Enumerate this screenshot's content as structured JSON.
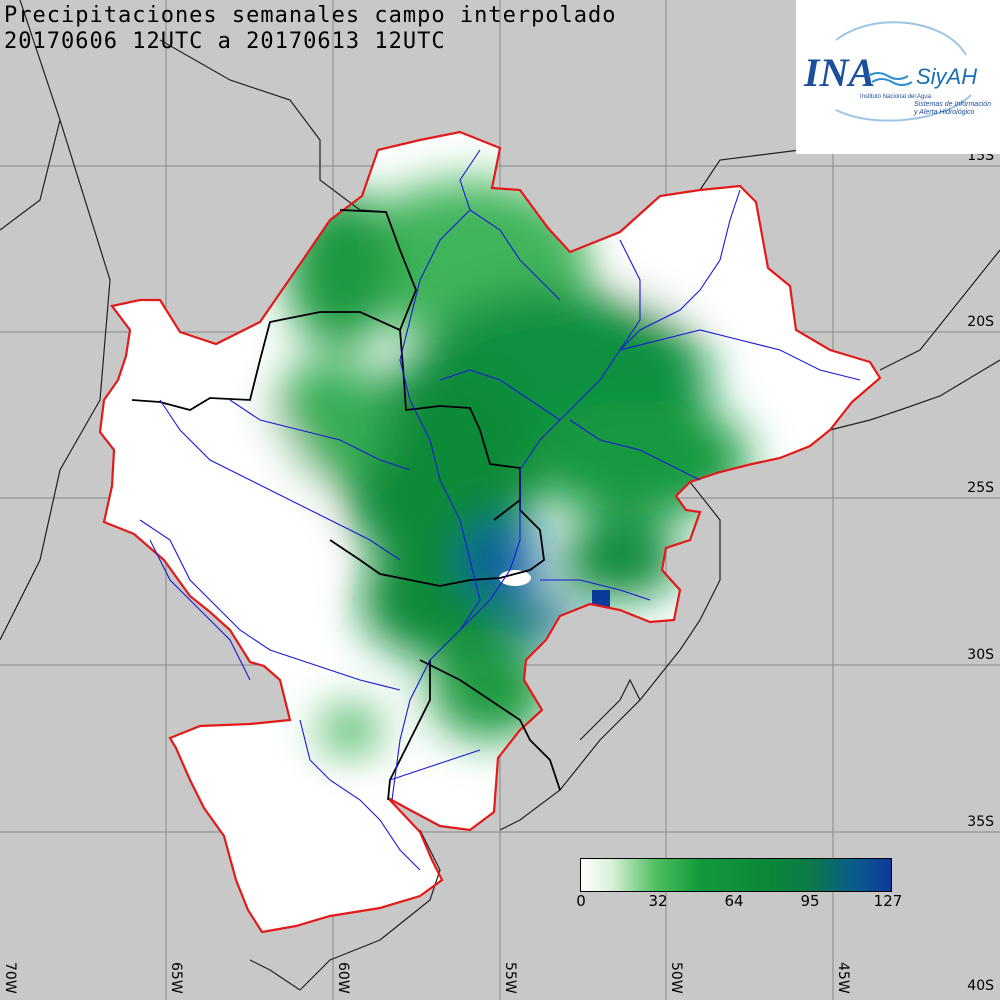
{
  "title": {
    "line1": "Precipitaciones semanales campo interpolado",
    "line2": "20170606 12UTC a 20170613 12UTC"
  },
  "latitude_labels": [
    "15S",
    "20S",
    "25S",
    "30S",
    "35S",
    "40S"
  ],
  "longitude_labels": [
    "70W",
    "65W",
    "60W",
    "55W",
    "50W",
    "45W"
  ],
  "legend": {
    "ticks": [
      "0",
      "32",
      "64",
      "95",
      "127"
    ],
    "colors": [
      "#ffffff",
      "#4fbf5f",
      "#0b8a35",
      "#0a7a48",
      "#0b3a9a"
    ]
  },
  "logo": {
    "name": "INA",
    "brand": "SiyAH",
    "line1": "Instituto Nacional del Agua",
    "line2": "Sistemas de Información",
    "line3": "y Alerta Hidrológico"
  },
  "colors": {
    "basin_outline": "#e21a1a",
    "rivers": "#1a1ad8",
    "borders": "#000000",
    "background": "#c8c8c8"
  }
}
